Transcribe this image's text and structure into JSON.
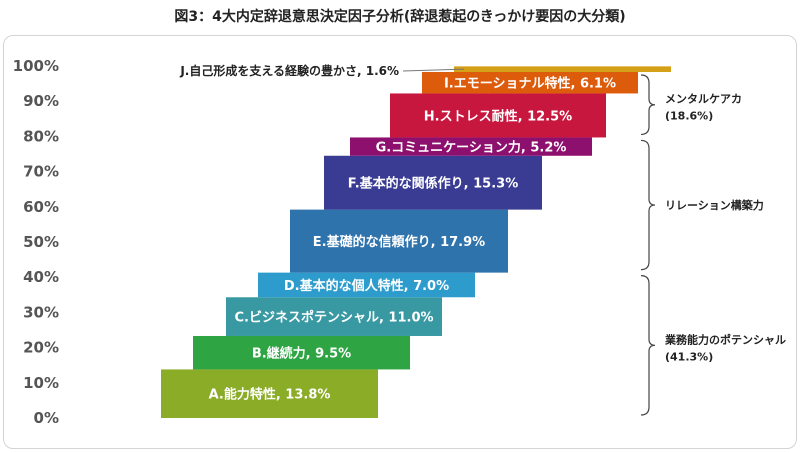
{
  "title": "図3：4大内定辞退意思決定因子分析(辞退惹起のきっかけ要因の大分類)",
  "chart_data": {
    "type": "bar",
    "subtype": "stacked-waterfall-horizontal",
    "title": "図3：4大内定辞退意思決定因子分析(辞退惹起のきっかけ要因の大分類)",
    "y_ticks": [
      "0%",
      "10%",
      "20%",
      "30%",
      "40%",
      "50%",
      "60%",
      "70%",
      "80%",
      "90%",
      "100%"
    ],
    "ylim": [
      0,
      100
    ],
    "grid": false,
    "items": [
      {
        "label": "A.能力特性, 13.8%",
        "value": 13.8,
        "color": "#8aac27"
      },
      {
        "label": "B.継続力, 9.5%",
        "value": 9.5,
        "color": "#2ea443"
      },
      {
        "label": "C.ビジネスポテンシャル, 11.0%",
        "value": 11.0,
        "color": "#3999a3"
      },
      {
        "label": "D.基本的な個人特性, 7.0%",
        "value": 7.0,
        "color": "#2d9ccd"
      },
      {
        "label": "E.基礎的な信頼作り, 17.9%",
        "value": 17.9,
        "color": "#2f73ad"
      },
      {
        "label": "F.基本的な関係作り, 15.3%",
        "value": 15.3,
        "color": "#3a3c93"
      },
      {
        "label": "G.コミュニケーション力, 5.2%",
        "value": 5.2,
        "color": "#8d0f6e"
      },
      {
        "label": "H.ストレス耐性, 12.5%",
        "value": 12.5,
        "color": "#c8173f"
      },
      {
        "label": "I.エモーショナル特性, 6.1%",
        "value": 6.1,
        "color": "#dc5c0c"
      },
      {
        "label": "J.自己形成を支える経験の豊かさ, 1.6%",
        "value": 1.6,
        "color": "#d4a017"
      }
    ],
    "groups": [
      {
        "line1": "業務能力のポテンシャル",
        "line2": "(41.3%)",
        "from_item": 0,
        "to_item": 3
      },
      {
        "line1": "リレーション構築力",
        "line2": "",
        "from_item": 4,
        "to_item": 6
      },
      {
        "line1": "メンタルケアカ",
        "line2": "(18.6%)",
        "from_item": 7,
        "to_item": 8
      }
    ]
  }
}
